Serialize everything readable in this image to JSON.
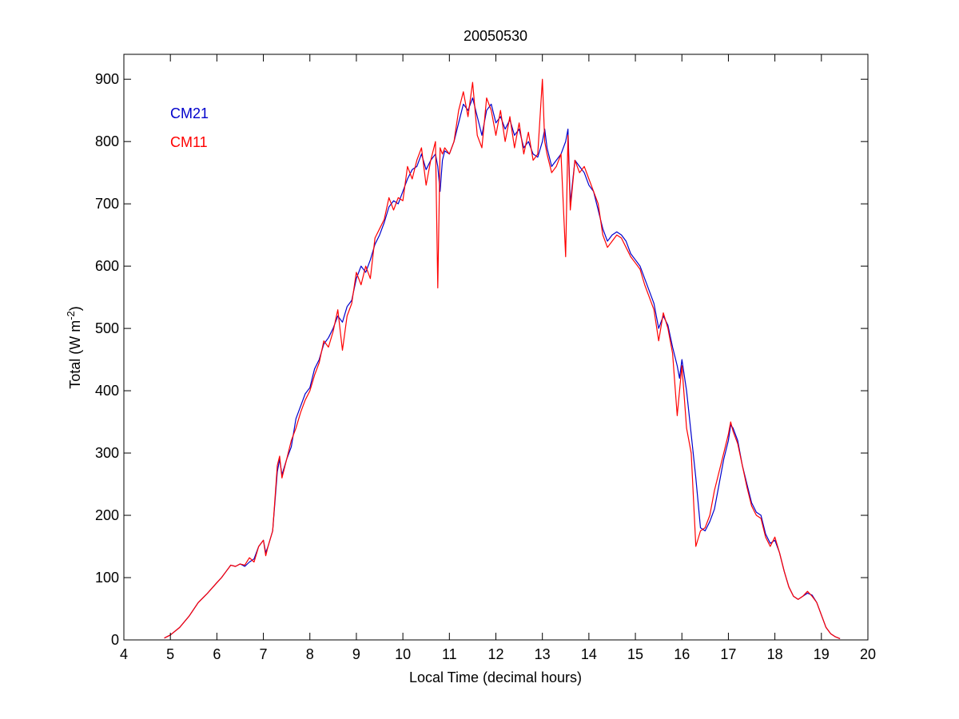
{
  "chart_data": {
    "type": "line",
    "title": "20050530",
    "xlabel": "Local Time (decimal hours)",
    "ylabel": {
      "prefix": "Total (W m",
      "sup": "-2",
      "suffix": ")"
    },
    "xlim": [
      4,
      20
    ],
    "ylim": [
      0,
      940
    ],
    "xticks": [
      4,
      5,
      6,
      7,
      8,
      9,
      10,
      11,
      12,
      13,
      14,
      15,
      16,
      17,
      18,
      19,
      20
    ],
    "yticks": [
      0,
      100,
      200,
      300,
      400,
      500,
      600,
      700,
      800,
      900
    ],
    "grid": false,
    "legend": {
      "placement": "top-left",
      "entries": [
        "CM21",
        "CM11"
      ]
    },
    "series": [
      {
        "name": "CM21",
        "color": "#0000cc",
        "x": [
          4.87,
          5.0,
          5.2,
          5.4,
          5.6,
          5.8,
          6.0,
          6.1,
          6.2,
          6.3,
          6.4,
          6.5,
          6.6,
          6.7,
          6.8,
          6.9,
          7.0,
          7.05,
          7.1,
          7.2,
          7.3,
          7.35,
          7.4,
          7.5,
          7.6,
          7.7,
          7.8,
          7.9,
          8.0,
          8.1,
          8.2,
          8.3,
          8.4,
          8.5,
          8.6,
          8.7,
          8.8,
          8.9,
          9.0,
          9.1,
          9.2,
          9.3,
          9.4,
          9.5,
          9.6,
          9.7,
          9.8,
          9.9,
          10.0,
          10.1,
          10.2,
          10.3,
          10.4,
          10.5,
          10.6,
          10.7,
          10.75,
          10.8,
          10.85,
          10.9,
          11.0,
          11.1,
          11.2,
          11.3,
          11.4,
          11.5,
          11.6,
          11.7,
          11.8,
          11.9,
          12.0,
          12.1,
          12.2,
          12.3,
          12.4,
          12.5,
          12.6,
          12.7,
          12.8,
          12.9,
          13.0,
          13.05,
          13.1,
          13.2,
          13.3,
          13.4,
          13.5,
          13.55,
          13.6,
          13.7,
          13.8,
          13.9,
          14.0,
          14.1,
          14.2,
          14.3,
          14.4,
          14.5,
          14.6,
          14.7,
          14.8,
          14.9,
          15.0,
          15.1,
          15.2,
          15.3,
          15.4,
          15.5,
          15.6,
          15.7,
          15.8,
          15.9,
          15.95,
          16.0,
          16.1,
          16.2,
          16.3,
          16.4,
          16.5,
          16.6,
          16.7,
          16.8,
          16.9,
          17.0,
          17.05,
          17.1,
          17.2,
          17.3,
          17.4,
          17.5,
          17.6,
          17.7,
          17.8,
          17.9,
          18.0,
          18.1,
          18.2,
          18.3,
          18.4,
          18.5,
          18.6,
          18.7,
          18.8,
          18.9,
          19.0,
          19.1,
          19.2,
          19.3,
          19.4
        ],
        "values": [
          3,
          8,
          20,
          38,
          60,
          75,
          92,
          100,
          110,
          120,
          118,
          122,
          118,
          125,
          130,
          150,
          160,
          140,
          150,
          175,
          270,
          290,
          265,
          290,
          310,
          355,
          375,
          395,
          405,
          435,
          450,
          475,
          485,
          500,
          520,
          510,
          535,
          545,
          580,
          600,
          590,
          610,
          635,
          650,
          670,
          695,
          705,
          700,
          720,
          740,
          755,
          760,
          780,
          755,
          770,
          780,
          760,
          720,
          770,
          785,
          780,
          800,
          830,
          860,
          850,
          870,
          840,
          810,
          850,
          860,
          830,
          840,
          820,
          835,
          810,
          820,
          790,
          800,
          780,
          775,
          800,
          820,
          790,
          760,
          770,
          780,
          800,
          820,
          700,
          770,
          760,
          750,
          730,
          720,
          690,
          660,
          640,
          650,
          655,
          650,
          640,
          620,
          610,
          600,
          580,
          560,
          540,
          500,
          520,
          505,
          470,
          440,
          420,
          450,
          400,
          330,
          260,
          180,
          175,
          190,
          210,
          250,
          290,
          320,
          345,
          340,
          320,
          280,
          250,
          220,
          205,
          200,
          170,
          155,
          160,
          140,
          110,
          85,
          70,
          65,
          70,
          75,
          72,
          60,
          40,
          20,
          10,
          5,
          2
        ]
      },
      {
        "name": "CM11",
        "color": "#ff0000",
        "x": [
          4.87,
          5.0,
          5.2,
          5.4,
          5.6,
          5.8,
          6.0,
          6.1,
          6.2,
          6.3,
          6.4,
          6.5,
          6.6,
          6.7,
          6.8,
          6.9,
          7.0,
          7.05,
          7.1,
          7.2,
          7.3,
          7.35,
          7.4,
          7.5,
          7.6,
          7.7,
          7.8,
          7.9,
          8.0,
          8.1,
          8.2,
          8.3,
          8.4,
          8.5,
          8.6,
          8.7,
          8.8,
          8.9,
          9.0,
          9.1,
          9.2,
          9.3,
          9.4,
          9.5,
          9.6,
          9.7,
          9.8,
          9.9,
          10.0,
          10.1,
          10.2,
          10.3,
          10.4,
          10.5,
          10.6,
          10.7,
          10.75,
          10.8,
          10.85,
          10.9,
          11.0,
          11.1,
          11.2,
          11.3,
          11.4,
          11.5,
          11.6,
          11.7,
          11.8,
          11.9,
          12.0,
          12.1,
          12.2,
          12.3,
          12.4,
          12.5,
          12.6,
          12.7,
          12.8,
          12.9,
          13.0,
          13.05,
          13.1,
          13.2,
          13.3,
          13.4,
          13.5,
          13.55,
          13.6,
          13.7,
          13.8,
          13.9,
          14.0,
          14.1,
          14.2,
          14.3,
          14.4,
          14.5,
          14.6,
          14.7,
          14.8,
          14.9,
          15.0,
          15.1,
          15.2,
          15.3,
          15.4,
          15.5,
          15.6,
          15.7,
          15.8,
          15.9,
          15.95,
          16.0,
          16.1,
          16.2,
          16.3,
          16.4,
          16.5,
          16.6,
          16.7,
          16.8,
          16.9,
          17.0,
          17.05,
          17.1,
          17.2,
          17.3,
          17.4,
          17.5,
          17.6,
          17.7,
          17.8,
          17.9,
          18.0,
          18.1,
          18.2,
          18.3,
          18.4,
          18.5,
          18.6,
          18.7,
          18.8,
          18.9,
          19.0,
          19.1,
          19.2,
          19.3,
          19.4
        ],
        "values": [
          3,
          8,
          20,
          38,
          60,
          75,
          92,
          100,
          110,
          120,
          118,
          122,
          120,
          132,
          125,
          150,
          160,
          135,
          150,
          175,
          280,
          295,
          260,
          290,
          320,
          340,
          365,
          385,
          400,
          425,
          445,
          480,
          470,
          495,
          530,
          465,
          520,
          540,
          590,
          570,
          600,
          580,
          645,
          660,
          675,
          710,
          690,
          710,
          705,
          760,
          740,
          770,
          790,
          730,
          770,
          800,
          565,
          790,
          780,
          790,
          780,
          800,
          850,
          880,
          840,
          895,
          810,
          790,
          870,
          850,
          810,
          850,
          800,
          840,
          790,
          830,
          780,
          815,
          770,
          780,
          900,
          800,
          780,
          750,
          760,
          780,
          615,
          810,
          690,
          770,
          750,
          760,
          740,
          720,
          700,
          650,
          630,
          640,
          650,
          645,
          630,
          615,
          605,
          595,
          570,
          550,
          530,
          480,
          525,
          500,
          460,
          360,
          400,
          440,
          340,
          300,
          150,
          175,
          180,
          200,
          240,
          270,
          300,
          330,
          350,
          335,
          315,
          280,
          245,
          215,
          200,
          195,
          165,
          150,
          165,
          140,
          110,
          85,
          70,
          65,
          70,
          78,
          70,
          60,
          40,
          20,
          10,
          5,
          2
        ]
      }
    ]
  }
}
